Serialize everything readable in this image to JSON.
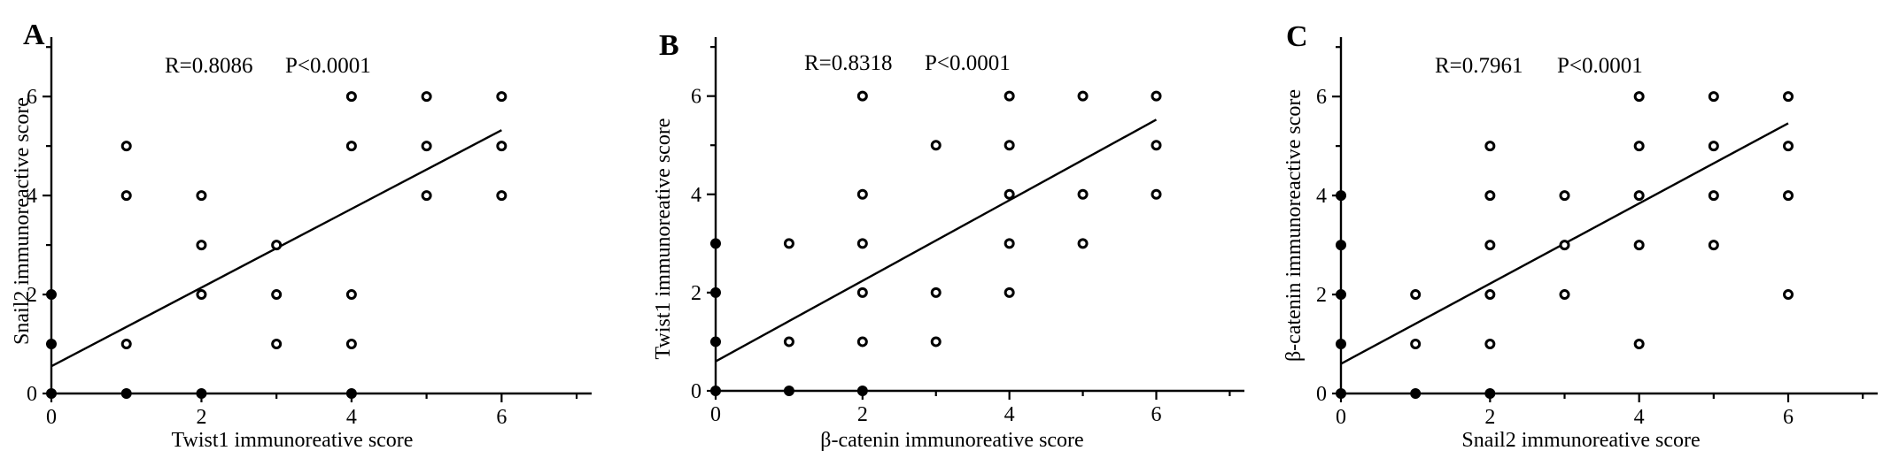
{
  "chart_data": [
    {
      "type": "scatter",
      "panel": "A",
      "stats": {
        "r": "R=0.8086",
        "p": "P<0.0001"
      },
      "xlabel": "Twist1 immunoreative score",
      "ylabel": "Snail2 immunoreactive score",
      "xlim": [
        0,
        7.2
      ],
      "ylim": [
        0,
        7.2
      ],
      "xticks": [
        0,
        2,
        4,
        6
      ],
      "yticks": [
        0,
        2,
        4,
        6
      ],
      "points": [
        [
          0,
          0
        ],
        [
          0,
          1
        ],
        [
          0,
          2
        ],
        [
          1,
          0
        ],
        [
          1,
          1
        ],
        [
          1,
          4
        ],
        [
          1,
          5
        ],
        [
          2,
          0
        ],
        [
          2,
          2
        ],
        [
          2,
          3
        ],
        [
          2,
          4
        ],
        [
          3,
          1
        ],
        [
          3,
          2
        ],
        [
          3,
          3
        ],
        [
          4,
          0
        ],
        [
          4,
          1
        ],
        [
          4,
          2
        ],
        [
          4,
          5
        ],
        [
          4,
          6
        ],
        [
          5,
          4
        ],
        [
          5,
          5
        ],
        [
          5,
          6
        ],
        [
          6,
          4
        ],
        [
          6,
          5
        ],
        [
          6,
          6
        ]
      ],
      "regression": {
        "intercept": 0.55,
        "slope": 0.795,
        "x_range": [
          0,
          6
        ]
      }
    },
    {
      "type": "scatter",
      "panel": "B",
      "stats": {
        "r": "R=0.8318",
        "p": "P<0.0001"
      },
      "xlabel": "β-catenin immunoreative score",
      "ylabel": "Twist1 immunoreative score",
      "xlim": [
        0,
        7.2
      ],
      "ylim": [
        0,
        7.2
      ],
      "xticks": [
        0,
        2,
        4,
        6
      ],
      "yticks": [
        0,
        2,
        4,
        6
      ],
      "points": [
        [
          0,
          0
        ],
        [
          0,
          1
        ],
        [
          0,
          2
        ],
        [
          0,
          3
        ],
        [
          1,
          0
        ],
        [
          1,
          1
        ],
        [
          1,
          3
        ],
        [
          2,
          0
        ],
        [
          2,
          1
        ],
        [
          2,
          2
        ],
        [
          2,
          3
        ],
        [
          2,
          4
        ],
        [
          2,
          6
        ],
        [
          3,
          1
        ],
        [
          3,
          2
        ],
        [
          3,
          5
        ],
        [
          4,
          2
        ],
        [
          4,
          3
        ],
        [
          4,
          4
        ],
        [
          4,
          5
        ],
        [
          4,
          6
        ],
        [
          5,
          3
        ],
        [
          5,
          4
        ],
        [
          5,
          6
        ],
        [
          6,
          4
        ],
        [
          6,
          5
        ],
        [
          6,
          6
        ]
      ],
      "regression": {
        "intercept": 0.6,
        "slope": 0.82,
        "x_range": [
          0,
          6
        ]
      }
    },
    {
      "type": "scatter",
      "panel": "C",
      "stats": {
        "r": "R=0.7961",
        "p": "P<0.0001"
      },
      "xlabel": "Snail2 immunoreative score",
      "ylabel": "β-catenin immunoreactive score",
      "xlim": [
        0,
        7.2
      ],
      "ylim": [
        0,
        7.2
      ],
      "xticks": [
        0,
        2,
        4,
        6
      ],
      "yticks": [
        0,
        2,
        4,
        6
      ],
      "points": [
        [
          0,
          0
        ],
        [
          0,
          1
        ],
        [
          0,
          2
        ],
        [
          0,
          3
        ],
        [
          0,
          4
        ],
        [
          1,
          0
        ],
        [
          1,
          1
        ],
        [
          1,
          2
        ],
        [
          2,
          0
        ],
        [
          2,
          1
        ],
        [
          2,
          2
        ],
        [
          2,
          3
        ],
        [
          2,
          4
        ],
        [
          2,
          5
        ],
        [
          3,
          2
        ],
        [
          3,
          3
        ],
        [
          3,
          4
        ],
        [
          4,
          1
        ],
        [
          4,
          3
        ],
        [
          4,
          4
        ],
        [
          4,
          5
        ],
        [
          4,
          6
        ],
        [
          5,
          3
        ],
        [
          5,
          4
        ],
        [
          5,
          5
        ],
        [
          5,
          6
        ],
        [
          6,
          2
        ],
        [
          6,
          4
        ],
        [
          6,
          5
        ],
        [
          6,
          6
        ]
      ],
      "regression": {
        "intercept": 0.6,
        "slope": 0.81,
        "x_range": [
          0,
          6
        ]
      }
    }
  ]
}
